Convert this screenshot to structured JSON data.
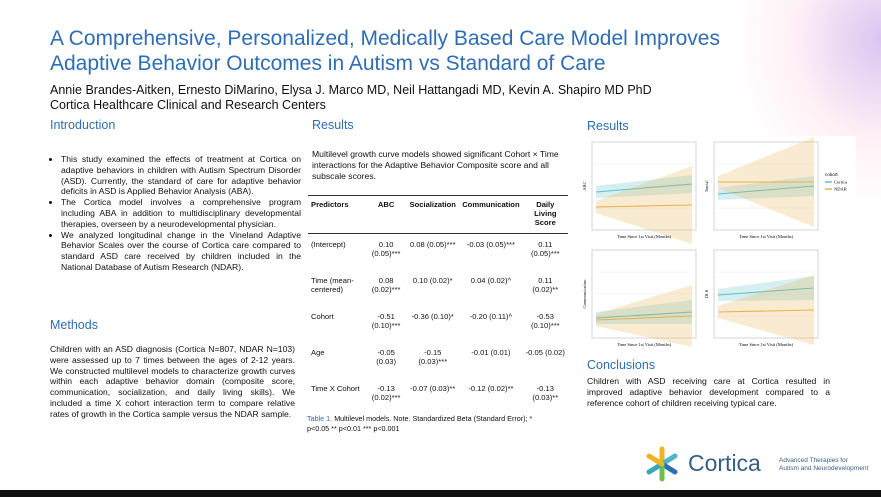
{
  "header": {
    "title_lines": [
      "A Comprehensive, Personalized, Medically Based Care Model Improves",
      "Adaptive Behavior Outcomes in Autism vs Standard of Care"
    ],
    "authors": "Annie Brandes-Aitken, Ernesto DiMarino, Elysa J. Marco MD, Neil Hattangadi MD, Kevin A. Shapiro MD PhD",
    "affiliation": "Cortica Healthcare Clinical and Research Centers"
  },
  "introduction": {
    "heading": "Introduction",
    "bullets": [
      "This study examined the effects of treatment at Cortica on adaptive behaviors in children with Autism Spectrum Disorder (ASD). Currently, the standard of care for adaptive behavior deficits in ASD is Applied Behavior Analysis (ABA).",
      "The Cortica model involves a comprehensive program including ABA in addition to multidisciplinary developmental therapies, overseen by a neurodevelopmental physician.",
      "We analyzed longitudinal change in the Vineland Adaptive Behavior Scales over the course of Cortica care compared to standard ASD care received by children included in the National Database of Autism Research (NDAR)."
    ]
  },
  "methods": {
    "heading": "Methods",
    "text": "Children with an ASD diagnosis (Cortica N=807, NDAR N=103) were assessed up to 7 times between the ages of 2-12 years. We constructed multilevel models to characterize growth curves within each adaptive behavior domain (composite score, communication, socialization, and daily living skills). We included a time X cohort interaction term to compare relative rates of growth in the Cortica sample versus the NDAR sample."
  },
  "results_table": {
    "heading": "Results",
    "text": "Multilevel growth curve models showed significant Cohort × Time interactions for the Adaptive Behavior Composite score and all subscale scores.",
    "headers": [
      "Predictors",
      "ABC",
      "Socialization",
      "Communication",
      "Daily Living Score"
    ],
    "rows": [
      [
        "(Intercept)",
        "0.10 (0.05)***",
        "0.08 (0.05)***",
        "-0.03 (0.05)***",
        "0.11 (0.05)***"
      ],
      [
        "Time (mean-centered)",
        "0.08 (0.02)***",
        "0.10 (0.02)*",
        "0.04 (0.02)^",
        "0.11 (0.02)**"
      ],
      [
        "Cohort",
        "-0.51 (0.10)***",
        "-0.36 (0.10)*",
        "-0.20 (0.11)^",
        "-0.53 (0.10)***"
      ],
      [
        "Age",
        "-0.05 (0.03)",
        "-0.15 (0.03)***",
        "-0.01 (0.01)",
        "-0.05 (0.02)"
      ],
      [
        "Time X Cohort",
        "-0.13 (0.02)***",
        "-0.07 (0.03)**",
        "-0.12 (0.02)**",
        "-0.13 (0.03)**"
      ]
    ],
    "caption_label": "Table 1.",
    "caption_text": "Multilevel models. Note. Standardized Beta (Standard Error); * p<0.05  ** p<0.01  *** p<0.001"
  },
  "results_plots": {
    "heading": "Results",
    "panels": [
      {
        "y_label": "ABC",
        "x_label": "Time Since 1st Visit (Months)"
      },
      {
        "y_label": "Social",
        "x_label": "Time Since 1st Visit (Months)"
      },
      {
        "y_label": "Communication",
        "x_label": "Time Since 1st Visit (Months)"
      },
      {
        "y_label": "DLS",
        "x_label": "Time Since 1st Visit (Months)"
      }
    ],
    "legend_title": "cohort",
    "legend_items": [
      {
        "name": "Cortica",
        "color": "#5bc0c8"
      },
      {
        "name": "NDAR",
        "color": "#e8b04a"
      }
    ]
  },
  "conclusions": {
    "heading": "Conclusions",
    "text": "Children with ASD receiving care at Cortica resulted in improved adaptive behavior development compared to a reference cohort of children receiving typical care."
  },
  "logo": {
    "name": "Cortica",
    "tagline_lines": [
      "Advanced Therapies for",
      "Autism and Neurodevelopment"
    ]
  }
}
